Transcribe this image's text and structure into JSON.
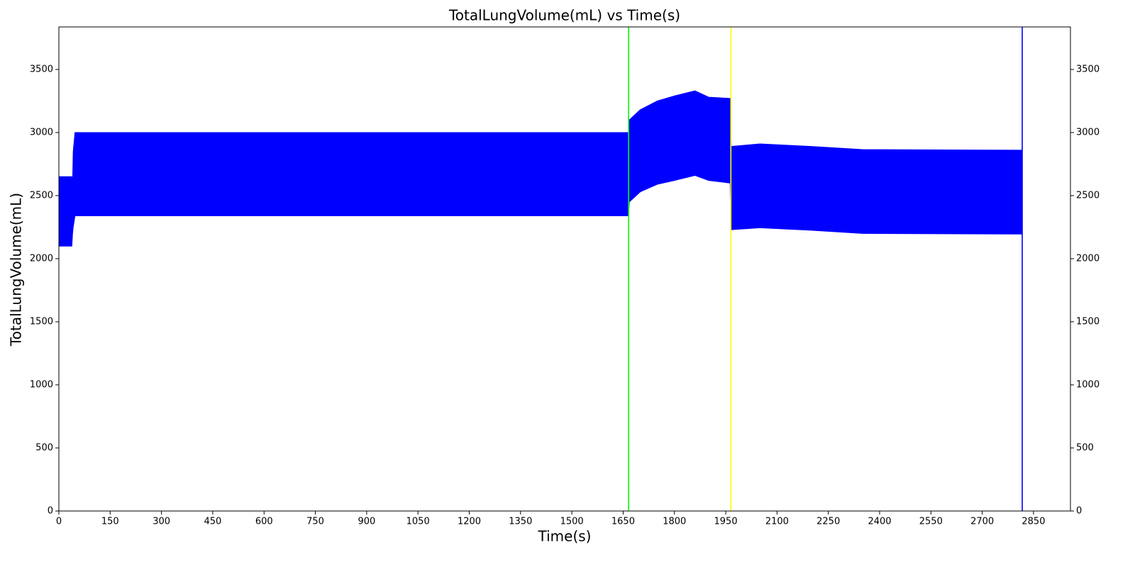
{
  "chart_data": {
    "type": "band",
    "title": "TotalLungVolume(mL) vs Time(s)",
    "x_label": "Time(s)",
    "y_label": "TotalLungVolume(mL)",
    "x": [
      0,
      38,
      40,
      42,
      47,
      1666,
      1668,
      1700,
      1750,
      1800,
      1860,
      1900,
      1963,
      1966,
      2050,
      2200,
      2350,
      2817
    ],
    "upper": [
      2650,
      2650,
      2600,
      2850,
      3000,
      3000,
      3100,
      3180,
      3250,
      3290,
      3330,
      3280,
      3270,
      2890,
      2910,
      2890,
      2865,
      2860
    ],
    "lower": [
      2100,
      2100,
      2200,
      2250,
      2340,
      2340,
      2450,
      2530,
      2590,
      2620,
      2660,
      2620,
      2600,
      2230,
      2245,
      2225,
      2200,
      2195
    ],
    "color": "#0000ff",
    "vlines": [
      {
        "x": 1666,
        "color": "#00ff00"
      },
      {
        "x": 1965,
        "color": "#ffff00"
      },
      {
        "x": 2817,
        "color": "#0000ff"
      }
    ],
    "xlim": [
      0,
      2958
    ],
    "ylim": [
      0,
      3837
    ],
    "xticks": [
      0,
      150,
      300,
      450,
      600,
      750,
      900,
      1050,
      1200,
      1350,
      1500,
      1650,
      1800,
      1950,
      2100,
      2250,
      2400,
      2550,
      2700,
      2850
    ],
    "yticks": [
      0,
      500,
      1000,
      1500,
      2000,
      2500,
      3000,
      3500
    ],
    "right_axis": true,
    "grid": false
  }
}
